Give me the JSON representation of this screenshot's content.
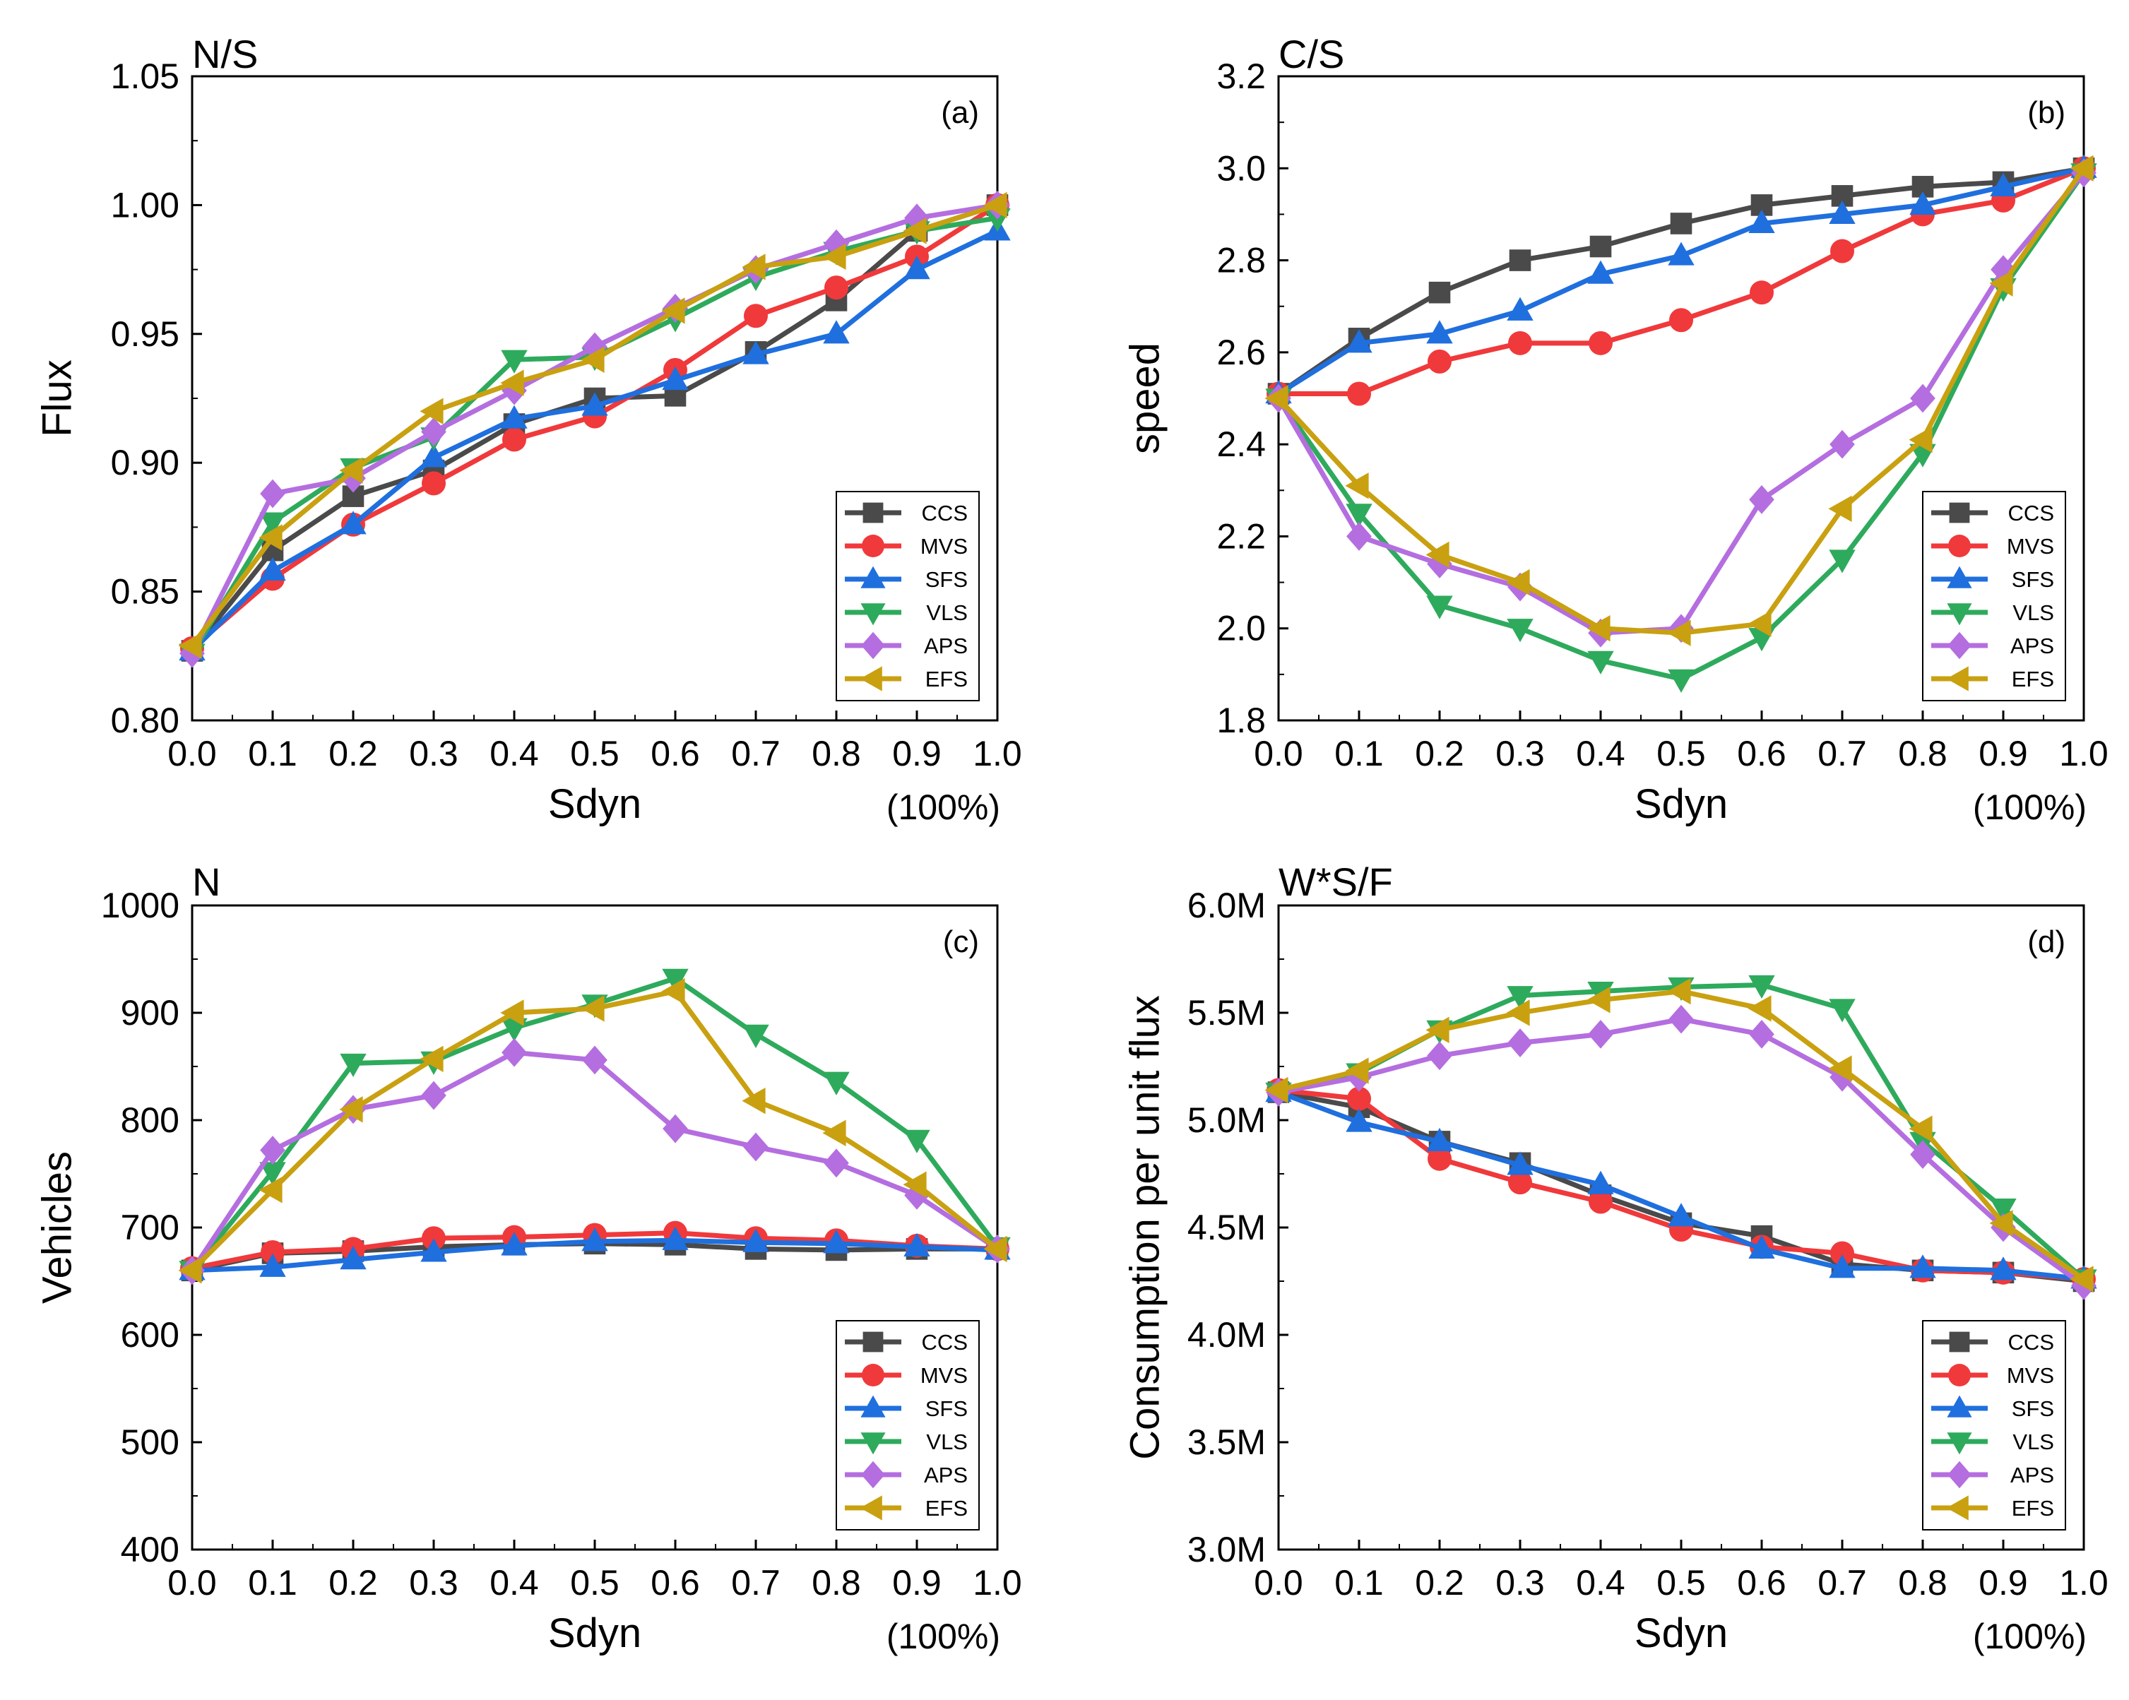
{
  "chart_data": [
    {
      "type": "line",
      "panel": "a",
      "title": "N/S",
      "letter": "(a)",
      "xlabel": "Sdyn",
      "xunit": "(100%)",
      "ylabel": "Flux",
      "xlim": [
        0,
        1
      ],
      "ylim": [
        0.8,
        1.05
      ],
      "xticks": [
        "0.0",
        "0.1",
        "0.2",
        "0.3",
        "0.4",
        "0.5",
        "0.6",
        "0.7",
        "0.8",
        "0.9",
        "1.0"
      ],
      "yticks": [
        0.8,
        0.85,
        0.9,
        0.95,
        1.0,
        1.05
      ],
      "ytick_labels": [
        "0.80",
        "0.85",
        "0.90",
        "0.95",
        "1.00",
        "1.05"
      ],
      "legend_position": "lower-right",
      "x": [
        0.0,
        0.1,
        0.2,
        0.3,
        0.4,
        0.5,
        0.6,
        0.7,
        0.8,
        0.9,
        1.0
      ],
      "series": [
        {
          "name": "CCS",
          "color": "#4a4a4a",
          "marker": "square",
          "values": [
            0.827,
            0.866,
            0.887,
            0.897,
            0.915,
            0.925,
            0.926,
            0.943,
            0.963,
            0.99,
            1.0
          ]
        },
        {
          "name": "MVS",
          "color": "#f0393b",
          "marker": "circle",
          "values": [
            0.828,
            0.855,
            0.876,
            0.892,
            0.909,
            0.918,
            0.936,
            0.957,
            0.968,
            0.98,
            1.0
          ]
        },
        {
          "name": "SFS",
          "color": "#1f6fde",
          "marker": "triangle-up",
          "values": [
            0.827,
            0.858,
            0.876,
            0.902,
            0.917,
            0.922,
            0.932,
            0.942,
            0.95,
            0.975,
            0.99
          ]
        },
        {
          "name": "VLS",
          "color": "#2eaa5c",
          "marker": "triangle-down",
          "values": [
            0.826,
            0.877,
            0.898,
            0.91,
            0.94,
            0.941,
            0.956,
            0.972,
            0.982,
            0.99,
            0.995
          ]
        },
        {
          "name": "APS",
          "color": "#b46ee0",
          "marker": "diamond",
          "values": [
            0.826,
            0.888,
            0.894,
            0.912,
            0.928,
            0.945,
            0.96,
            0.975,
            0.985,
            0.995,
            1.0
          ]
        },
        {
          "name": "EFS",
          "color": "#c9a010",
          "marker": "triangle-left",
          "values": [
            0.829,
            0.871,
            0.897,
            0.92,
            0.931,
            0.94,
            0.959,
            0.976,
            0.98,
            0.99,
            1.0
          ]
        }
      ]
    },
    {
      "type": "line",
      "panel": "b",
      "title": "C/S",
      "letter": "(b)",
      "xlabel": "Sdyn",
      "xunit": "(100%)",
      "ylabel": "speed",
      "xlim": [
        0,
        1
      ],
      "ylim": [
        1.8,
        3.2
      ],
      "xticks": [
        "0.0",
        "0.1",
        "0.2",
        "0.3",
        "0.4",
        "0.5",
        "0.6",
        "0.7",
        "0.8",
        "0.9",
        "1.0"
      ],
      "yticks": [
        1.8,
        2.0,
        2.2,
        2.4,
        2.6,
        2.8,
        3.0,
        3.2
      ],
      "ytick_labels": [
        "1.8",
        "2.0",
        "2.2",
        "2.4",
        "2.6",
        "2.8",
        "3.0",
        "3.2"
      ],
      "legend_position": "lower-right",
      "x": [
        0.0,
        0.1,
        0.2,
        0.3,
        0.4,
        0.5,
        0.6,
        0.7,
        0.8,
        0.9,
        1.0
      ],
      "series": [
        {
          "name": "CCS",
          "color": "#4a4a4a",
          "marker": "square",
          "values": [
            2.51,
            2.63,
            2.73,
            2.8,
            2.83,
            2.88,
            2.92,
            2.94,
            2.96,
            2.97,
            3.0
          ]
        },
        {
          "name": "MVS",
          "color": "#f0393b",
          "marker": "circle",
          "values": [
            2.51,
            2.51,
            2.58,
            2.62,
            2.62,
            2.67,
            2.73,
            2.82,
            2.9,
            2.93,
            3.0
          ]
        },
        {
          "name": "SFS",
          "color": "#1f6fde",
          "marker": "triangle-up",
          "values": [
            2.51,
            2.62,
            2.64,
            2.69,
            2.77,
            2.81,
            2.88,
            2.9,
            2.92,
            2.96,
            3.0
          ]
        },
        {
          "name": "VLS",
          "color": "#2eaa5c",
          "marker": "triangle-down",
          "values": [
            2.5,
            2.25,
            2.05,
            2.0,
            1.93,
            1.89,
            1.98,
            2.15,
            2.38,
            2.74,
            2.99
          ]
        },
        {
          "name": "APS",
          "color": "#b46ee0",
          "marker": "diamond",
          "values": [
            2.5,
            2.2,
            2.14,
            2.09,
            1.99,
            2.0,
            2.28,
            2.4,
            2.5,
            2.78,
            2.99
          ]
        },
        {
          "name": "EFS",
          "color": "#c9a010",
          "marker": "triangle-left",
          "values": [
            2.5,
            2.31,
            2.16,
            2.1,
            2.0,
            1.99,
            2.01,
            2.26,
            2.41,
            2.75,
            3.0
          ]
        }
      ]
    },
    {
      "type": "line",
      "panel": "c",
      "title": "N",
      "letter": "(c)",
      "xlabel": "Sdyn",
      "xunit": "(100%)",
      "ylabel": "Vehicles",
      "xlim": [
        0,
        1
      ],
      "ylim": [
        400,
        1000
      ],
      "xticks": [
        "0.0",
        "0.1",
        "0.2",
        "0.3",
        "0.4",
        "0.5",
        "0.6",
        "0.7",
        "0.8",
        "0.9",
        "1.0"
      ],
      "yticks": [
        400,
        500,
        600,
        700,
        800,
        900,
        1000
      ],
      "ytick_labels": [
        "400",
        "500",
        "600",
        "700",
        "800",
        "900",
        "1000"
      ],
      "legend_position": "lower-right",
      "x": [
        0.0,
        0.1,
        0.2,
        0.3,
        0.4,
        0.5,
        0.6,
        0.7,
        0.8,
        0.9,
        1.0
      ],
      "series": [
        {
          "name": "CCS",
          "color": "#4a4a4a",
          "marker": "square",
          "values": [
            660,
            676,
            678,
            682,
            684,
            685,
            684,
            680,
            679,
            680,
            680
          ]
        },
        {
          "name": "MVS",
          "color": "#f0393b",
          "marker": "circle",
          "values": [
            662,
            677,
            680,
            690,
            691,
            693,
            695,
            690,
            688,
            683,
            680
          ]
        },
        {
          "name": "SFS",
          "color": "#1f6fde",
          "marker": "triangle-up",
          "values": [
            660,
            663,
            670,
            677,
            683,
            687,
            688,
            686,
            685,
            682,
            679
          ]
        },
        {
          "name": "VLS",
          "color": "#2eaa5c",
          "marker": "triangle-down",
          "values": [
            660,
            752,
            853,
            855,
            886,
            908,
            932,
            880,
            836,
            782,
            682
          ]
        },
        {
          "name": "APS",
          "color": "#b46ee0",
          "marker": "diamond",
          "values": [
            660,
            772,
            810,
            823,
            863,
            856,
            792,
            775,
            760,
            730,
            680
          ]
        },
        {
          "name": "EFS",
          "color": "#c9a010",
          "marker": "triangle-left",
          "values": [
            660,
            735,
            810,
            857,
            900,
            904,
            920,
            818,
            788,
            740,
            680
          ]
        }
      ]
    },
    {
      "type": "line",
      "panel": "d",
      "title": "W*S/F",
      "letter": "(d)",
      "xlabel": "Sdyn",
      "xunit": "(100%)",
      "ylabel": "Consumption per unit flux",
      "xlim": [
        0,
        1
      ],
      "ylim": [
        3.0,
        6.0
      ],
      "xticks": [
        "0.0",
        "0.1",
        "0.2",
        "0.3",
        "0.4",
        "0.5",
        "0.6",
        "0.7",
        "0.8",
        "0.9",
        "1.0"
      ],
      "yticks": [
        3.0,
        3.5,
        4.0,
        4.5,
        5.0,
        5.5,
        6.0
      ],
      "ytick_labels": [
        "3.0M",
        "3.5M",
        "4.0M",
        "4.5M",
        "5.0M",
        "5.5M",
        "6.0M"
      ],
      "legend_position": "lower-right",
      "x": [
        0.0,
        0.1,
        0.2,
        0.3,
        0.4,
        0.5,
        0.6,
        0.7,
        0.8,
        0.9,
        1.0
      ],
      "series": [
        {
          "name": "CCS",
          "color": "#4a4a4a",
          "marker": "square",
          "values": [
            5.13,
            5.06,
            4.9,
            4.8,
            4.65,
            4.52,
            4.46,
            4.33,
            4.3,
            4.29,
            4.25
          ]
        },
        {
          "name": "MVS",
          "color": "#f0393b",
          "marker": "circle",
          "values": [
            5.14,
            5.1,
            4.82,
            4.71,
            4.62,
            4.49,
            4.41,
            4.38,
            4.3,
            4.29,
            4.26
          ]
        },
        {
          "name": "SFS",
          "color": "#1f6fde",
          "marker": "triangle-up",
          "values": [
            5.13,
            4.99,
            4.9,
            4.79,
            4.7,
            4.55,
            4.4,
            4.31,
            4.31,
            4.3,
            4.26
          ]
        },
        {
          "name": "VLS",
          "color": "#2eaa5c",
          "marker": "triangle-down",
          "values": [
            5.13,
            5.22,
            5.42,
            5.58,
            5.6,
            5.62,
            5.63,
            5.52,
            4.9,
            4.59,
            4.26
          ]
        },
        {
          "name": "APS",
          "color": "#b46ee0",
          "marker": "diamond",
          "values": [
            5.13,
            5.2,
            5.3,
            5.36,
            5.4,
            5.47,
            5.4,
            5.2,
            4.84,
            4.5,
            4.23
          ]
        },
        {
          "name": "EFS",
          "color": "#c9a010",
          "marker": "triangle-left",
          "values": [
            5.14,
            5.23,
            5.42,
            5.5,
            5.56,
            5.6,
            5.52,
            5.24,
            4.96,
            4.52,
            4.26
          ]
        }
      ]
    }
  ]
}
